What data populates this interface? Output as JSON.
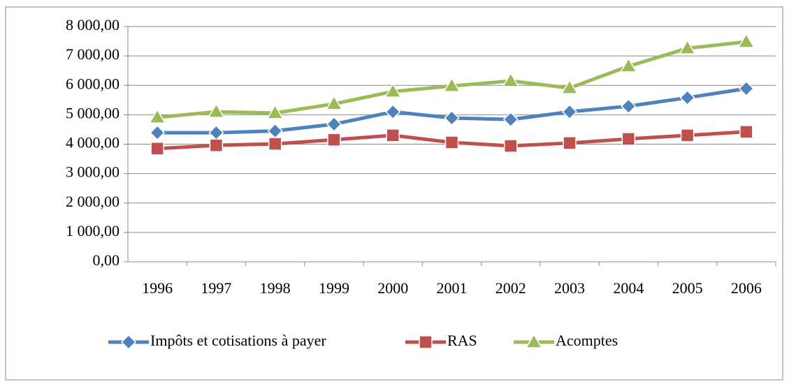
{
  "chart_data": {
    "type": "line",
    "categories": [
      "1996",
      "1997",
      "1998",
      "1999",
      "2000",
      "2001",
      "2002",
      "2003",
      "2004",
      "2005",
      "2006"
    ],
    "series": [
      {
        "name": "Impôts et cotisations à payer",
        "color": "#4f81bd",
        "marker": "diamond",
        "values": [
          4390,
          4390,
          4450,
          4680,
          5100,
          4890,
          4840,
          5100,
          5290,
          5580,
          5890
        ]
      },
      {
        "name": "RAS",
        "color": "#c0504d",
        "marker": "square",
        "values": [
          3850,
          3960,
          4010,
          4150,
          4300,
          4060,
          3940,
          4040,
          4180,
          4300,
          4420
        ]
      },
      {
        "name": "Acomptes",
        "color": "#9bbb59",
        "marker": "triangle",
        "values": [
          4910,
          5100,
          5060,
          5370,
          5790,
          5980,
          6150,
          5910,
          6650,
          7260,
          7480
        ]
      }
    ],
    "ylim": [
      0,
      8000
    ],
    "yticks": [
      {
        "value": 0,
        "label": "0,00"
      },
      {
        "value": 1000,
        "label": "1 000,00"
      },
      {
        "value": 2000,
        "label": "2 000,00"
      },
      {
        "value": 3000,
        "label": "3 000,00"
      },
      {
        "value": 4000,
        "label": "4 000,00"
      },
      {
        "value": 5000,
        "label": "5 000,00"
      },
      {
        "value": 6000,
        "label": "6 000,00"
      },
      {
        "value": 7000,
        "label": "7 000,00"
      },
      {
        "value": 8000,
        "label": "8 000,00"
      }
    ],
    "grid": true,
    "legend": "bottom"
  }
}
